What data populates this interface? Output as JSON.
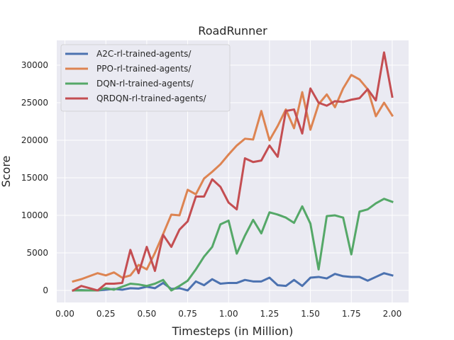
{
  "chart_data": {
    "type": "line",
    "title": "RoadRunner",
    "xlabel": "Timesteps (in Million)",
    "ylabel": "Score",
    "xlim": [
      -0.05,
      2.1
    ],
    "ylim": [
      -1600,
      33300
    ],
    "xticks": [
      0.0,
      0.25,
      0.5,
      0.75,
      1.0,
      1.25,
      1.5,
      1.75,
      2.0
    ],
    "xtick_labels": [
      "0.00",
      "0.25",
      "0.50",
      "0.75",
      "1.00",
      "1.25",
      "1.50",
      "1.75",
      "2.00"
    ],
    "yticks": [
      0,
      5000,
      10000,
      15000,
      20000,
      25000,
      30000
    ],
    "ytick_labels": [
      "0",
      "5000",
      "10000",
      "15000",
      "20000",
      "25000",
      "30000"
    ],
    "grid": true,
    "legend_position": "top-left",
    "x": [
      0.05,
      0.1,
      0.15,
      0.2,
      0.25,
      0.3,
      0.35,
      0.4,
      0.45,
      0.5,
      0.55,
      0.6,
      0.65,
      0.7,
      0.75,
      0.8,
      0.85,
      0.9,
      0.95,
      1.0,
      1.05,
      1.1,
      1.15,
      1.2,
      1.25,
      1.3,
      1.35,
      1.4,
      1.45,
      1.5,
      1.55,
      1.6,
      1.65,
      1.7,
      1.75,
      1.8,
      1.85,
      1.9,
      1.95,
      2.0
    ],
    "series": [
      {
        "name": "A2C-rl-trained-agents/",
        "color": "#4c72b0",
        "values": [
          0,
          50,
          0,
          0,
          100,
          200,
          100,
          300,
          250,
          500,
          300,
          1000,
          200,
          300,
          0,
          1200,
          700,
          1500,
          900,
          1000,
          1000,
          1400,
          1200,
          1200,
          1700,
          700,
          600,
          1400,
          600,
          1700,
          1800,
          1600,
          2200,
          1900,
          1800,
          1800,
          1300,
          1800,
          2300,
          2000
        ]
      },
      {
        "name": "PPO-rl-trained-agents/",
        "color": "#dd8452",
        "values": [
          1200,
          1500,
          1900,
          2300,
          2000,
          2400,
          1700,
          2000,
          3400,
          2800,
          5000,
          7500,
          10100,
          10000,
          13400,
          12800,
          14900,
          15800,
          16800,
          18100,
          19300,
          20200,
          20100,
          23900,
          20000,
          21900,
          24100,
          21600,
          26400,
          21400,
          24800,
          26100,
          24400,
          26900,
          28700,
          28100,
          26800,
          23200,
          25000,
          23300
        ]
      },
      {
        "name": "DQN-rl-trained-agents/",
        "color": "#55a868",
        "values": [
          0,
          0,
          0,
          0,
          300,
          100,
          500,
          900,
          800,
          600,
          900,
          1400,
          0,
          600,
          1300,
          2800,
          4500,
          5800,
          8800,
          9300,
          4900,
          7300,
          9400,
          7600,
          10400,
          10100,
          9700,
          9000,
          11200,
          8900,
          2800,
          9900,
          10000,
          9700,
          4800,
          10500,
          10800,
          11600,
          12200,
          11800
        ]
      },
      {
        "name": "QRDQN-rl-trained-agents/",
        "color": "#c44e52",
        "values": [
          0,
          600,
          300,
          0,
          900,
          900,
          1000,
          5400,
          2300,
          5800,
          2600,
          7400,
          5800,
          8100,
          9200,
          12500,
          12500,
          14800,
          13800,
          11700,
          10800,
          17600,
          17100,
          17300,
          19300,
          17800,
          23900,
          24100,
          20900,
          26900,
          25000,
          24600,
          25200,
          25100,
          25400,
          25600,
          26800,
          25300,
          31700,
          25800
        ]
      }
    ]
  }
}
